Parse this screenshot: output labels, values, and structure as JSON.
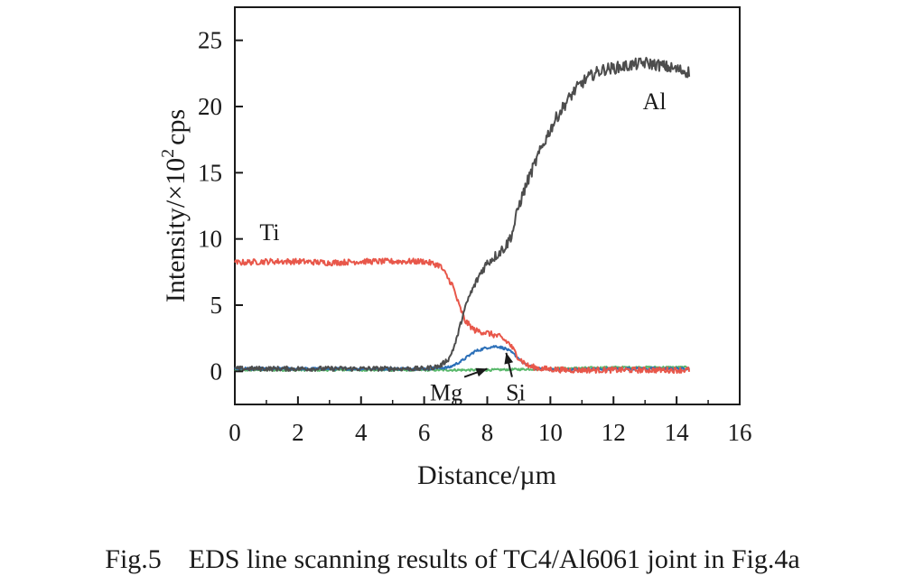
{
  "caption": "Fig.5    EDS line scanning results of TC4/Al6061 joint in Fig.4a",
  "chart_data": {
    "type": "line",
    "title": "",
    "xlabel": "Distance/µm",
    "ylabel_main": "Intensity/×10",
    "ylabel_sup": "2",
    "ylabel_unit": "cps",
    "xlim": [
      0,
      16
    ],
    "ylim": [
      -2.5,
      27.5
    ],
    "xticks": [
      0,
      2,
      4,
      6,
      8,
      10,
      12,
      14,
      16
    ],
    "yticks": [
      0,
      5,
      10,
      15,
      20,
      25
    ],
    "grid": false,
    "legend": "none",
    "series": [
      {
        "name": "Al",
        "color": "#4d4d4d",
        "x": [
          0,
          1,
          2,
          3,
          4,
          5,
          6,
          6.5,
          6.8,
          7.0,
          7.2,
          7.4,
          7.6,
          7.8,
          8.0,
          8.3,
          8.6,
          8.8,
          9.0,
          9.3,
          9.6,
          9.9,
          10.2,
          10.5,
          10.8,
          11.1,
          11.4,
          11.7,
          12.0,
          12.5,
          13.0,
          13.5,
          14.0,
          14.4
        ],
        "values": [
          0.2,
          0.2,
          0.2,
          0.2,
          0.2,
          0.2,
          0.2,
          0.4,
          1.0,
          2.2,
          4.0,
          5.5,
          6.5,
          7.5,
          8.2,
          8.8,
          9.5,
          10.5,
          12.5,
          14.5,
          16.2,
          17.8,
          19.2,
          20.3,
          21.3,
          22.0,
          22.5,
          22.8,
          22.9,
          23.1,
          23.3,
          23.1,
          22.8,
          22.6
        ]
      },
      {
        "name": "Ti",
        "color": "#e8574a",
        "x": [
          0,
          1,
          2,
          3,
          4,
          5,
          6,
          6.5,
          6.9,
          7.1,
          7.3,
          7.6,
          8.0,
          8.4,
          8.7,
          9.0,
          9.3,
          9.7,
          10.5,
          12.0,
          14.4
        ],
        "values": [
          8.2,
          8.3,
          8.3,
          8.2,
          8.3,
          8.3,
          8.3,
          8.0,
          6.5,
          5.0,
          3.8,
          3.1,
          2.9,
          2.6,
          2.1,
          1.0,
          0.4,
          0.2,
          0.1,
          0.1,
          0.1
        ]
      },
      {
        "name": "Si",
        "color": "#2b6fb8",
        "x": [
          0,
          2,
          4,
          6,
          6.8,
          7.2,
          7.6,
          8.0,
          8.3,
          8.6,
          8.9,
          9.2,
          9.6,
          10.5,
          12.0,
          14.4
        ],
        "values": [
          0.2,
          0.2,
          0.2,
          0.2,
          0.3,
          0.8,
          1.5,
          1.8,
          1.9,
          1.7,
          1.2,
          0.5,
          0.2,
          0.1,
          0.2,
          0.2
        ]
      },
      {
        "name": "Mg",
        "color": "#58b86a",
        "x": [
          0,
          2,
          4,
          6,
          8,
          10,
          12,
          14.4
        ],
        "values": [
          0.1,
          0.1,
          0.1,
          0.1,
          0.1,
          0.2,
          0.3,
          0.3
        ]
      }
    ],
    "annotations": [
      {
        "text": "Al",
        "x": 13.3,
        "y": 19.8
      },
      {
        "text": "Ti",
        "x": 1.1,
        "y": 9.9
      },
      {
        "text": "Mg",
        "x": 6.7,
        "y": -2.2,
        "arrow_to": [
          8.0,
          0.2
        ]
      },
      {
        "text": "Si",
        "x": 8.9,
        "y": -2.2,
        "arrow_to": [
          8.6,
          1.4
        ]
      }
    ]
  }
}
